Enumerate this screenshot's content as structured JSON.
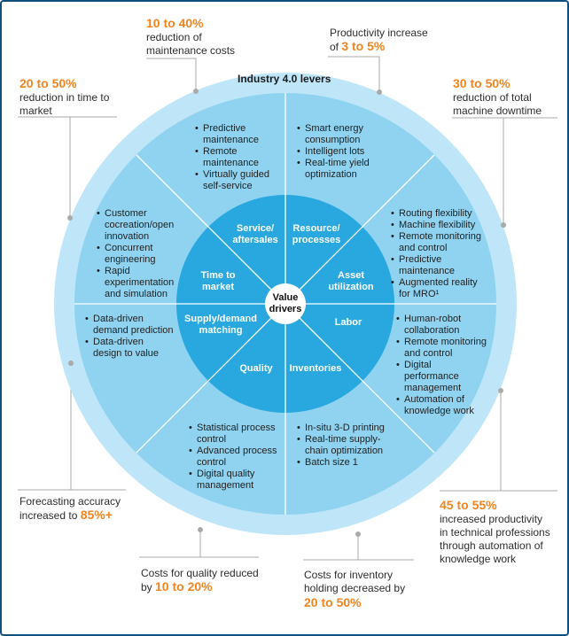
{
  "colors": {
    "outer_ring": "#bfe6f8",
    "middle_ring": "#8fd3f1",
    "inner_ring": "#29a8e0",
    "hub": "#ffffff",
    "highlight": "#f0841f",
    "leader": "#aaaaaa",
    "frame": "#0e4f7f"
  },
  "ring_title": "Industry 4.0 levers",
  "hub": {
    "line1": "Value",
    "line2": "drivers"
  },
  "drivers": [
    {
      "line1": "Service/",
      "line2": "aftersales"
    },
    {
      "line1": "Resource/",
      "line2": "processes"
    },
    {
      "line1": "Asset",
      "line2": "utilization"
    },
    {
      "line1": "Labor",
      "line2": ""
    },
    {
      "line1": "Inventories",
      "line2": ""
    },
    {
      "line1": "Quality",
      "line2": ""
    },
    {
      "line1": "Supply/demand",
      "line2": "matching"
    },
    {
      "line1": "Time to",
      "line2": "market"
    }
  ],
  "levers": {
    "service": [
      "Predictive maintenance",
      "Remote maintenance",
      "Virtually guided self-service"
    ],
    "resource": [
      "Smart energy consumption",
      "Intelligent lots",
      "Real-time yield optimization"
    ],
    "asset": [
      "Routing flexibility",
      "Machine flexibility",
      "Remote monitoring and control",
      "Predictive maintenance",
      "Augmented reality for MRO¹"
    ],
    "labor": [
      "Human-robot collaboration",
      "Remote monitoring and control",
      "Digital performance management",
      "Automation of knowledge work"
    ],
    "inventories": [
      "In-situ 3-D printing",
      "Real-time supply-chain optimization",
      "Batch size 1"
    ],
    "quality": [
      "Statistical process control",
      "Advanced process control",
      "Digital quality management"
    ],
    "supply": [
      "Data-driven demand prediction",
      "Data-driven design to value"
    ],
    "time": [
      "Customer cocreation/open innovation",
      "Concurrent engineering",
      "Rapid experimentation and simulation"
    ]
  },
  "callouts": {
    "maintenance": {
      "value": "10 to 40%",
      "text1": "reduction of",
      "text2": "maintenance costs"
    },
    "productivity": {
      "text1": "Productivity increase",
      "prefix": "of ",
      "value": "3 to 5%"
    },
    "time_to_market": {
      "value": "20 to 50%",
      "text1": "reduction in time to",
      "text2": "market"
    },
    "downtime": {
      "value": "30 to 50%",
      "text1": "reduction of total",
      "text2": "machine downtime"
    },
    "forecasting": {
      "text1": "Forecasting accuracy",
      "prefix": "increased to ",
      "value": "85%+"
    },
    "knowledge_work": {
      "value": "45 to 55%",
      "text1": "increased productivity",
      "text2": "in technical professions",
      "text3": "through automation of",
      "text4": "knowledge work"
    },
    "quality_costs": {
      "text1": "Costs for quality reduced",
      "prefix": "by ",
      "value": "10 to 20%"
    },
    "inventory": {
      "text1": "Costs for inventory",
      "text2": "holding decreased by",
      "value": "20 to 50%"
    }
  }
}
